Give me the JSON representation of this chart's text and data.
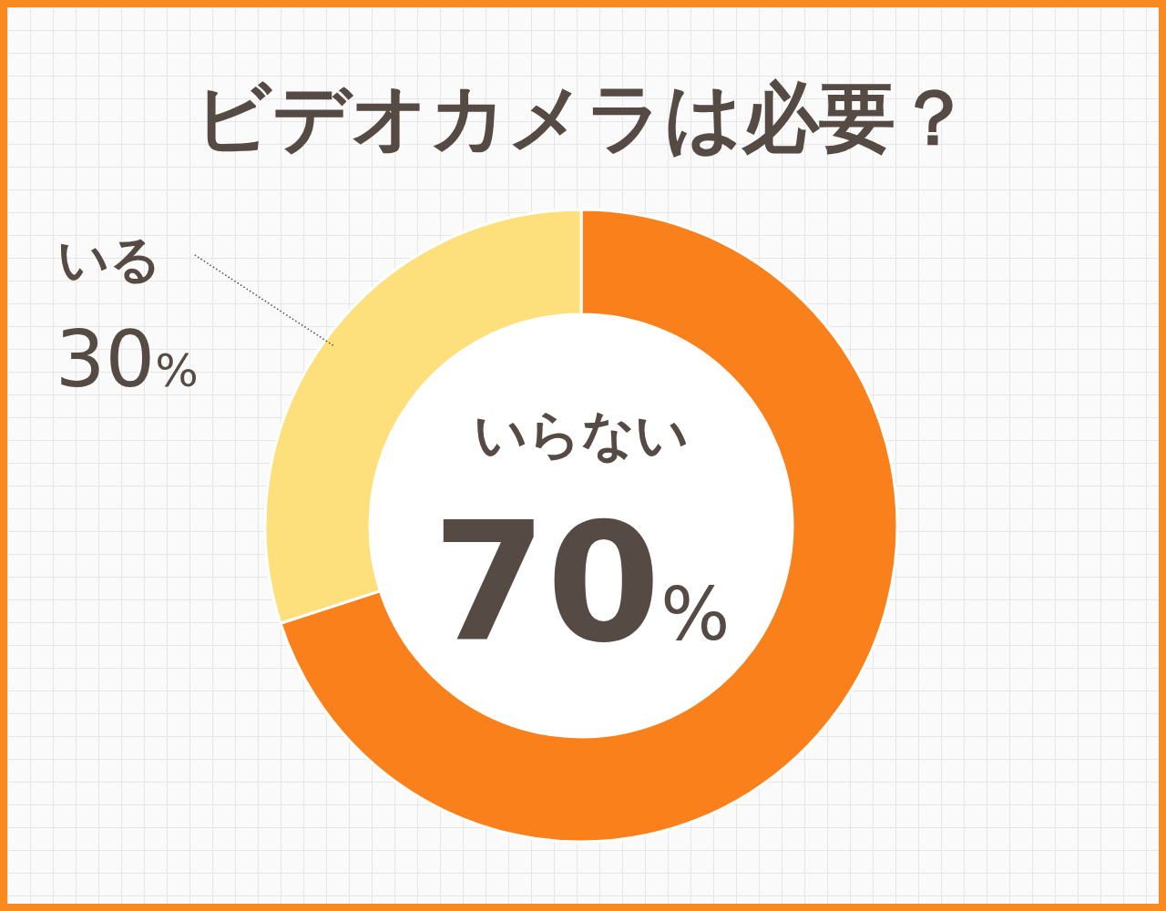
{
  "chart_data": {
    "type": "donut",
    "title": "ビデオカメラは必要？",
    "categories": [
      "いらない",
      "いる"
    ],
    "values": [
      70,
      30
    ],
    "colors": [
      "#f9801a",
      "#fde07c"
    ],
    "value_labels": [
      "70%",
      "30%"
    ]
  }
}
